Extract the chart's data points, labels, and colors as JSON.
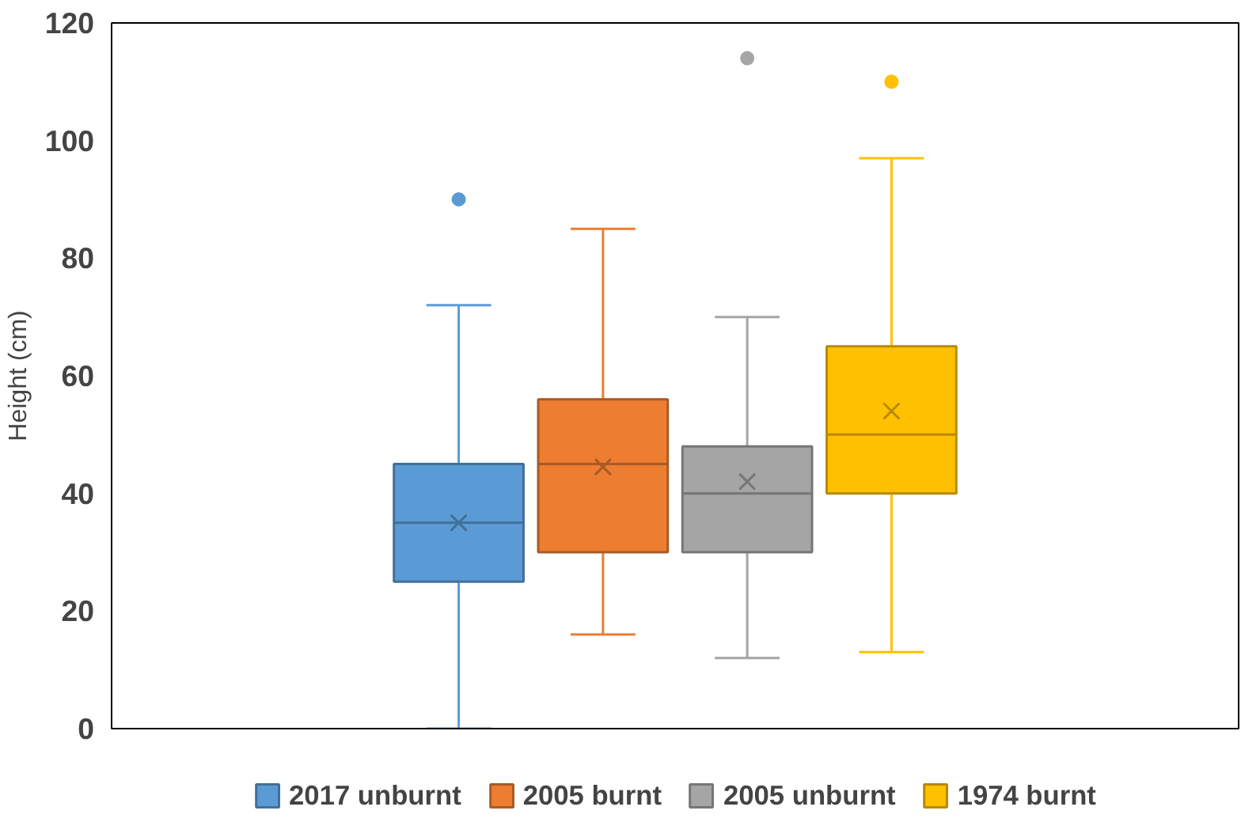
{
  "chart_data": {
    "type": "box",
    "categories": [
      null
    ],
    "ylabel": "Height (cm)",
    "ylim": [
      0,
      120
    ],
    "yticks": [
      0,
      20,
      40,
      60,
      80,
      100,
      120
    ],
    "grid": false,
    "legend": "bottom",
    "series": [
      {
        "name": "2017 unburnt",
        "color": "#5b9bd5",
        "boxes": [
          {
            "low": 0,
            "q1": 25,
            "median": 35,
            "q3": 45,
            "high": 72,
            "mean": 35,
            "outliers": [
              90
            ]
          }
        ]
      },
      {
        "name": "2005 burnt",
        "color": "#ed7d31",
        "boxes": [
          {
            "low": 16,
            "q1": 30,
            "median": 45,
            "q3": 56,
            "high": 85,
            "mean": 44.5
          }
        ]
      },
      {
        "name": "2005 unburnt",
        "color": "#a5a5a5",
        "boxes": [
          {
            "low": 12,
            "q1": 30,
            "median": 40,
            "q3": 48,
            "high": 70,
            "mean": 42,
            "outliers": [
              114
            ]
          }
        ]
      },
      {
        "name": "1974 burnt",
        "color": "#ffc000",
        "boxes": [
          {
            "low": 13,
            "q1": 40,
            "median": 50,
            "q3": 65,
            "high": 97,
            "mean": 54,
            "outliers": [
              110
            ]
          }
        ]
      }
    ]
  }
}
